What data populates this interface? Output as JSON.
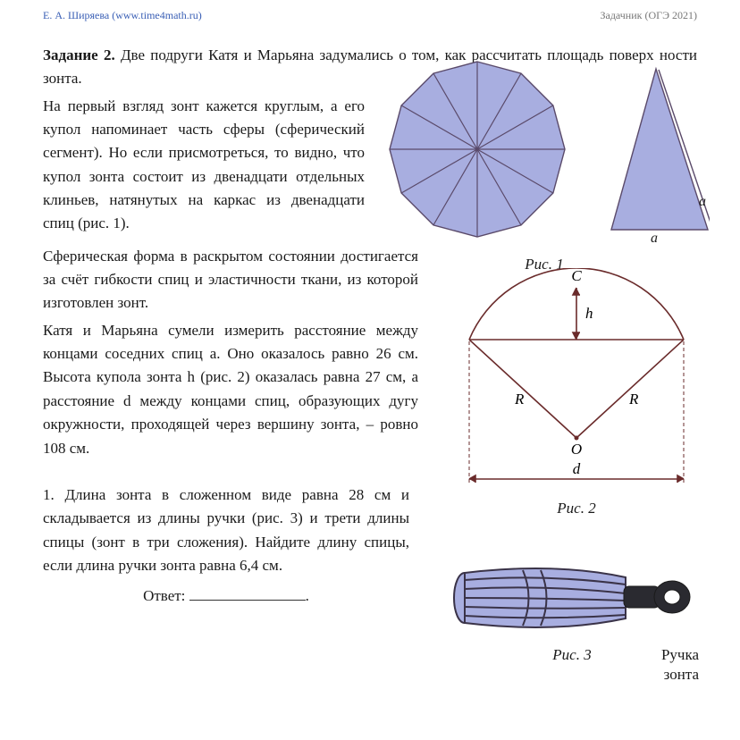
{
  "header": {
    "left": "Е. А. Ширяева (www.time4math.ru)",
    "right": "Задачник (ОГЭ 2021)"
  },
  "task": {
    "label": "Задание 2.",
    "intro": " Две подруги Катя и Марьяна задумались о том, как рассчитать площадь поверх ности зонта.",
    "p1": "На первый взгляд зонт кажется круглым, а его купол напоминает часть сферы (сферический сег­мент). Но если присмотреться, то видно, что купол зонта состоит из двенадцати отдельных клинь­ев, натянутых на каркас из две­надцати спиц (рис. 1).",
    "p2": "Сферическая форма в раскрытом сос­тоянии достигается за счёт гибкости спиц и эластичности ткани, из которой изго­товлен зонт.",
    "p3": "Катя и Марьяна сумели измерить расстоя­ние между концами соседних спиц a. Оно оказалось равно 26 см. Высота купола зонта h (рис. 2) оказалась равна 27 см, а расстояние d между концами спиц, обра­зующих дугу окружности, проходящей че­рез вершину зонта, – ровно 108 см."
  },
  "q1": {
    "text": "1. Длина зонта в сложенном виде равна 28 см и складывается из длины ручки (рис. 3) и трети длины спицы (зонт в три сложения). Найдите длину спицы, если длина ручки зонта равна 6,4 см.",
    "answer_label": "Ответ:"
  },
  "fig": {
    "c1": "Рис. 1",
    "c2": "Рис. 2",
    "c3": "Рис. 3",
    "handle": "Ручка\nзонта",
    "a": "a",
    "C": "C",
    "h": "h",
    "R": "R",
    "O": "O",
    "d": "d"
  },
  "style": {
    "fill": "#a8aee0",
    "stroke": "#5a4a6a",
    "dark": "#2a2a44"
  }
}
